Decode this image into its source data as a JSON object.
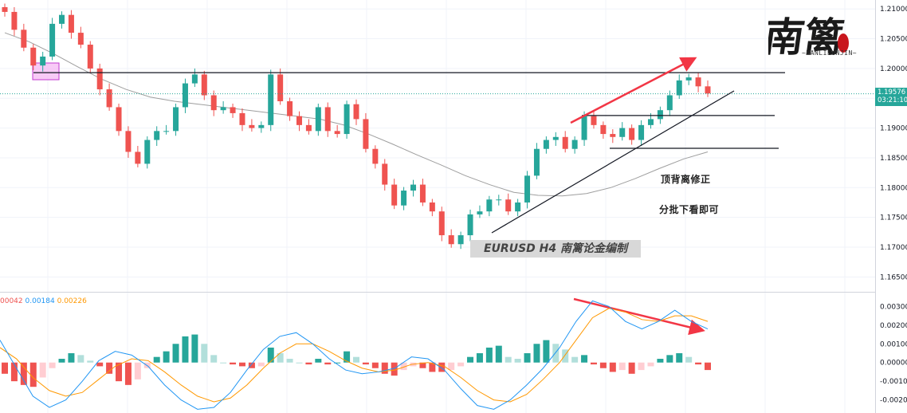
{
  "colors": {
    "up": "#26a69a",
    "down": "#ef5350",
    "macd_line": "#2196f3",
    "signal_line": "#ff9800",
    "ma": "#9e9e9e",
    "annotation_red": "#f23645",
    "zone_fill": "#f5b3f2",
    "zone_stroke": "#c23bd0",
    "hist_up_strong": "#26a69a",
    "hist_up_weak": "#b2dfdb",
    "hist_down_strong": "#ef5350",
    "hist_down_weak": "#ffcdd2"
  },
  "chart_data": [
    {
      "type": "candlestick",
      "symbol": "EURUSD",
      "timeframe": "H4",
      "watermark": "EURUSD    H4   南篱论金编制",
      "y_axis_labels": [
        "1.21000",
        "1.20500",
        "1.20000",
        "1.19500",
        "1.19000",
        "1.18500",
        "1.18000",
        "1.17500",
        "1.17000",
        "1.16500"
      ],
      "ylim": [
        1.1625,
        1.2115
      ],
      "current_price": "1.19576",
      "countdown": "03:21:10",
      "close_path": [
        1.2095,
        1.2065,
        1.2035,
        1.2005,
        1.202,
        1.2075,
        1.209,
        1.206,
        1.204,
        1.2,
        1.1965,
        1.1935,
        1.1895,
        1.186,
        1.184,
        1.188,
        1.1895,
        1.1895,
        1.1935,
        1.1975,
        1.199,
        1.1955,
        1.193,
        1.1935,
        1.1925,
        1.1905,
        1.19,
        1.1905,
        1.199,
        1.1945,
        1.192,
        1.1905,
        1.1895,
        1.1935,
        1.1895,
        1.189,
        1.194,
        1.1915,
        1.1865,
        1.184,
        1.1805,
        1.177,
        1.1795,
        1.1805,
        1.1775,
        1.176,
        1.172,
        1.1705,
        1.172,
        1.1755,
        1.176,
        1.178,
        1.178,
        1.176,
        1.1775,
        1.182,
        1.1865,
        1.188,
        1.1885,
        1.1865,
        1.188,
        1.192,
        1.1905,
        1.189,
        1.1885,
        1.19,
        1.188,
        1.1905,
        1.1915,
        1.193,
        1.1955,
        1.198,
        1.1985,
        1.197,
        1.1958
      ],
      "moving_average_path": [
        1.206,
        1.2045,
        1.2025,
        1.2003,
        1.1982,
        1.1965,
        1.1952,
        1.1945,
        1.194,
        1.1935,
        1.193,
        1.1925,
        1.192,
        1.1915,
        1.1905,
        1.189,
        1.1873,
        1.1855,
        1.1838,
        1.182,
        1.1805,
        1.1792,
        1.1787,
        1.1786,
        1.179,
        1.18,
        1.1815,
        1.1832,
        1.1848,
        1.186
      ],
      "horizontal_levels": [
        1.1993,
        1.1921,
        1.1866
      ],
      "rising_trendline": [
        [
          1.171
        ],
        [
          1.1956
        ]
      ],
      "resistance_zones": [
        "zone-1",
        "zone-2",
        "zone-3",
        "zone-4"
      ]
    },
    {
      "type": "macd",
      "legend_values": [
        "00042",
        "0.00184",
        "0.00226"
      ],
      "y_axis_labels": [
        "0.00300",
        "0.00200",
        "0.00100",
        "0.00000",
        "-0.00100",
        "-0.00200"
      ],
      "ylim": [
        -0.0027,
        0.0037
      ],
      "histogram": [
        -0.0006,
        -0.001,
        -0.0012,
        -0.0013,
        -0.0008,
        -0.0003,
        0.0002,
        0.0005,
        0.0004,
        0.0001,
        -0.0002,
        -0.0006,
        -0.001,
        -0.0012,
        -0.0009,
        -0.0003,
        0.0003,
        0.0006,
        0.001,
        0.0014,
        0.0015,
        0.001,
        0.0004,
        0.0,
        -0.0001,
        -0.0002,
        -0.0003,
        -0.0002,
        0.0008,
        0.0005,
        0.0002,
        0.0,
        -0.0001,
        0.0002,
        -0.0001,
        0.0,
        0.0006,
        0.0003,
        -0.0001,
        -0.0003,
        -0.0006,
        -0.0007,
        -0.0004,
        -0.0002,
        -0.0003,
        -0.0005,
        -0.0005,
        -0.0004,
        -0.0002,
        0.0003,
        0.0005,
        0.0008,
        0.0009,
        0.0003,
        0.0002,
        0.0005,
        0.001,
        0.0012,
        0.001,
        0.0007,
        0.0003,
        0.0004,
        -0.0001,
        -0.0003,
        -0.0005,
        -0.0004,
        -0.0006,
        -0.0004,
        -0.0002,
        0.0002,
        0.0004,
        0.0005,
        0.0003,
        -0.0001,
        -0.0004
      ],
      "macd_path": [
        0.0012,
        -0.0003,
        -0.0018,
        -0.0024,
        -0.002,
        -0.001,
        0.0001,
        0.0006,
        0.0004,
        -0.0002,
        -0.0012,
        -0.002,
        -0.0025,
        -0.0024,
        -0.0016,
        -0.0004,
        0.0007,
        0.0014,
        0.0016,
        0.001,
        0.0002,
        -0.0004,
        -0.0006,
        -0.0005,
        -0.0003,
        0.0003,
        0.0002,
        -0.0004,
        -0.0014,
        -0.0023,
        -0.0025,
        -0.002,
        -0.0012,
        -0.0003,
        0.0008,
        0.0022,
        0.0033,
        0.003,
        0.0022,
        0.0018,
        0.0022,
        0.0028,
        0.0022,
        0.0018
      ],
      "signal_path": [
        0.0008,
        0.0002,
        -0.0008,
        -0.0015,
        -0.0018,
        -0.0016,
        -0.0009,
        -0.0002,
        0.0002,
        0.0001,
        -0.0005,
        -0.0012,
        -0.0018,
        -0.0021,
        -0.0019,
        -0.0012,
        -0.0003,
        0.0005,
        0.001,
        0.001,
        0.0006,
        0.0001,
        -0.0003,
        -0.0005,
        -0.0004,
        -0.0001,
        0.0,
        -0.0002,
        -0.0008,
        -0.0015,
        -0.002,
        -0.0021,
        -0.0017,
        -0.0009,
        0.0,
        0.0012,
        0.0024,
        0.0029,
        0.0027,
        0.0023,
        0.0022,
        0.0025,
        0.0025,
        0.0022
      ]
    }
  ],
  "annotations": {
    "note_1": "顶背离修正",
    "note_2": "分批下看即可"
  },
  "logo": {
    "text": "南篱",
    "sub": "~NANLILUNJIN~"
  }
}
